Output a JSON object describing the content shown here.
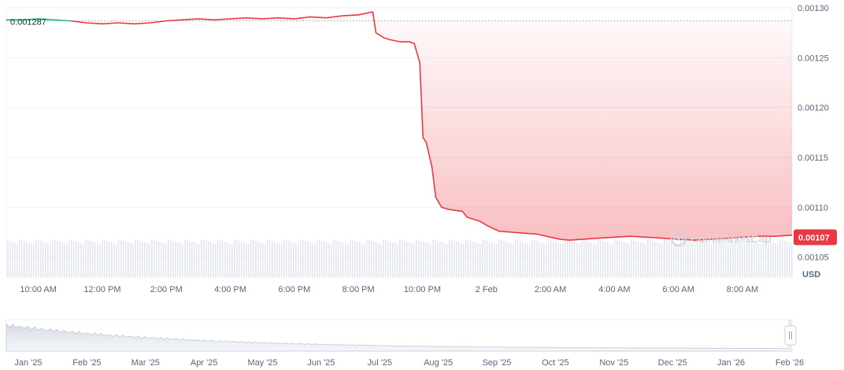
{
  "chart_data": {
    "type": "area",
    "unit": "USD",
    "watermark": "CoinMarketCap",
    "open_price_label": "0.001287",
    "last_price_label": "0.00107",
    "open_price": 0.001287,
    "last_price": 0.00107,
    "ylim": [
      0.00103,
      0.0013
    ],
    "y_ticks": [
      {
        "value": 0.0013,
        "label": "0.00130"
      },
      {
        "value": 0.00125,
        "label": "0.00125"
      },
      {
        "value": 0.0012,
        "label": "0.00120"
      },
      {
        "value": 0.00115,
        "label": "0.00115"
      },
      {
        "value": 0.0011,
        "label": "0.00110"
      },
      {
        "value": 0.00105,
        "label": "0.00105"
      }
    ],
    "x_ticks": [
      {
        "t": 10,
        "label": "10:00 AM"
      },
      {
        "t": 12,
        "label": "12:00 PM"
      },
      {
        "t": 14,
        "label": "2:00 PM"
      },
      {
        "t": 16,
        "label": "4:00 PM"
      },
      {
        "t": 18,
        "label": "6:00 PM"
      },
      {
        "t": 20,
        "label": "8:00 PM"
      },
      {
        "t": 22,
        "label": "10:00 PM"
      },
      {
        "t": 24,
        "label": "2 Feb"
      },
      {
        "t": 26,
        "label": "2:00 AM"
      },
      {
        "t": 28,
        "label": "4:00 AM"
      },
      {
        "t": 30,
        "label": "6:00 AM"
      },
      {
        "t": 32,
        "label": "8:00 AM"
      }
    ],
    "xlim": [
      9.0,
      33.55
    ],
    "series": [
      {
        "points": [
          [
            9.0,
            0.001288
          ],
          [
            9.5,
            0.001288
          ],
          [
            10.0,
            0.001289
          ],
          [
            10.5,
            0.001288
          ],
          [
            11.0,
            0.001287
          ],
          [
            11.5,
            0.001285
          ],
          [
            12.0,
            0.001284
          ],
          [
            12.5,
            0.001285
          ],
          [
            13.0,
            0.001284
          ],
          [
            13.5,
            0.001285
          ],
          [
            14.0,
            0.001287
          ],
          [
            14.5,
            0.001288
          ],
          [
            15.0,
            0.001289
          ],
          [
            15.5,
            0.001288
          ],
          [
            16.0,
            0.001289
          ],
          [
            16.5,
            0.00129
          ],
          [
            17.0,
            0.001289
          ],
          [
            17.5,
            0.00129
          ],
          [
            18.0,
            0.001289
          ],
          [
            18.5,
            0.001291
          ],
          [
            19.0,
            0.00129
          ],
          [
            19.5,
            0.001292
          ],
          [
            20.0,
            0.001293
          ],
          [
            20.3,
            0.001295
          ],
          [
            20.45,
            0.001296
          ],
          [
            20.55,
            0.001275
          ],
          [
            20.8,
            0.00127
          ],
          [
            21.0,
            0.001268
          ],
          [
            21.3,
            0.001266
          ],
          [
            21.6,
            0.001266
          ],
          [
            21.75,
            0.001264
          ],
          [
            21.92,
            0.001245
          ],
          [
            22.02,
            0.00117
          ],
          [
            22.12,
            0.001165
          ],
          [
            22.3,
            0.00114
          ],
          [
            22.42,
            0.00111
          ],
          [
            22.6,
            0.0011
          ],
          [
            22.8,
            0.001098
          ],
          [
            23.0,
            0.001097
          ],
          [
            23.25,
            0.001096
          ],
          [
            23.4,
            0.00109
          ],
          [
            23.6,
            0.001088
          ],
          [
            23.8,
            0.001086
          ],
          [
            24.0,
            0.001082
          ],
          [
            24.4,
            0.001076
          ],
          [
            24.8,
            0.001075
          ],
          [
            25.2,
            0.001074
          ],
          [
            25.6,
            0.001073
          ],
          [
            26.0,
            0.00107
          ],
          [
            26.3,
            0.001068
          ],
          [
            26.6,
            0.001067
          ],
          [
            27.0,
            0.001068
          ],
          [
            27.5,
            0.001069
          ],
          [
            28.0,
            0.00107
          ],
          [
            28.5,
            0.001071
          ],
          [
            29.0,
            0.00107
          ],
          [
            29.5,
            0.001069
          ],
          [
            30.0,
            0.001068
          ],
          [
            30.5,
            0.001067
          ],
          [
            31.0,
            0.001068
          ],
          [
            31.5,
            0.001069
          ],
          [
            32.0,
            0.00107
          ],
          [
            32.5,
            0.001071
          ],
          [
            33.0,
            0.001071
          ],
          [
            33.55,
            0.001072
          ]
        ]
      }
    ],
    "navigator_ticks": [
      "Jan '25",
      "Feb '25",
      "Mar '25",
      "Apr '25",
      "May '25",
      "Jun '25",
      "Jul '25",
      "Aug '25",
      "Sep '25",
      "Oct '25",
      "Nov '25",
      "Dec '25",
      "Jan '26",
      "Feb '26"
    ],
    "grid": true,
    "legend": "none"
  },
  "colors": {
    "up": "#16c784",
    "down": "#ea3943",
    "grid": "#eff2f5",
    "volume": "#e3e7ee",
    "navigator": "#dbe0e8"
  }
}
